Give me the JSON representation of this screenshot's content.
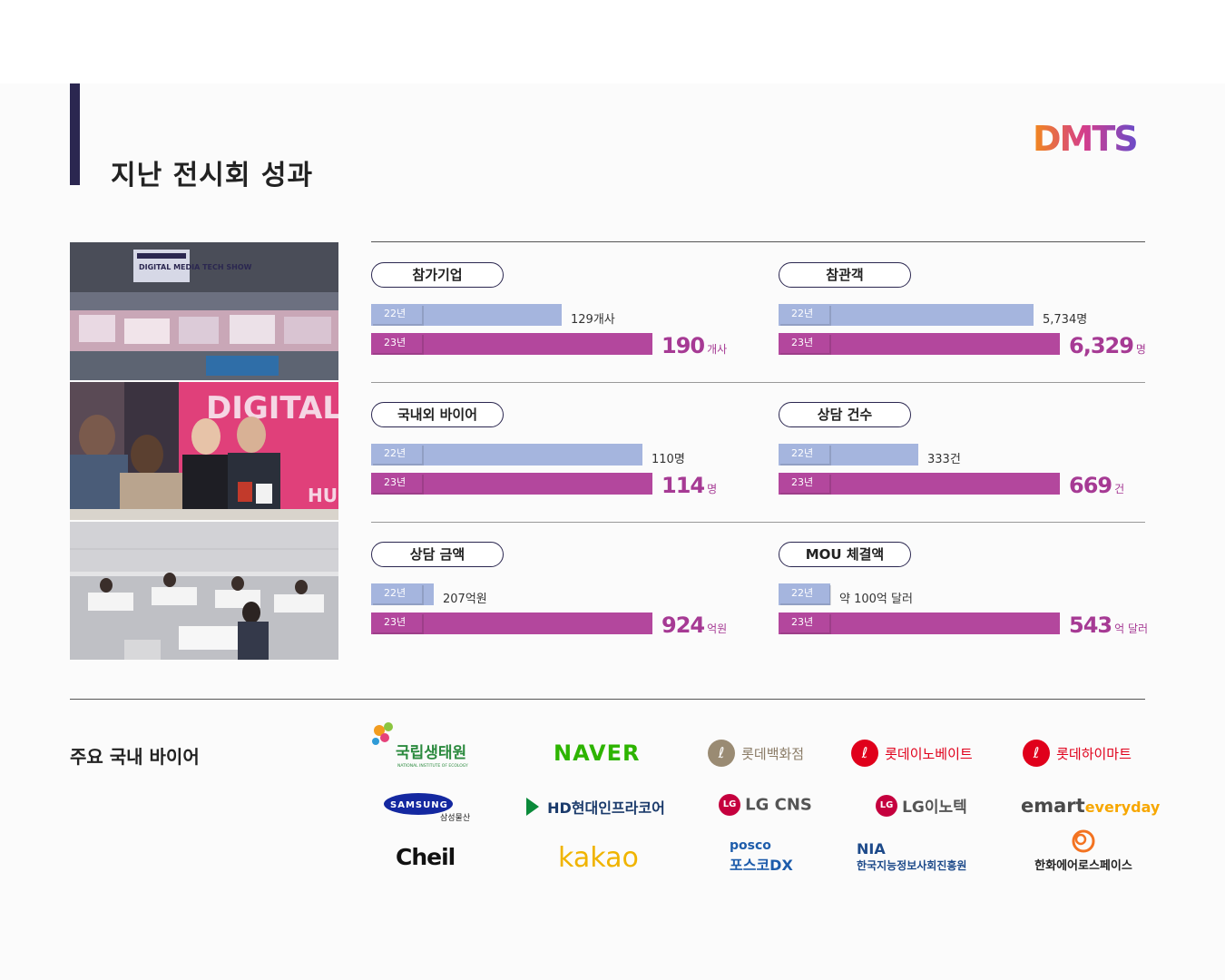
{
  "page": {
    "title": "지난 전시회 성과",
    "logo_text": "DMTS"
  },
  "photos": [
    "전시장 전경",
    "바이어 상담",
    "상담회장"
  ],
  "photo_sign_text": [
    "DIGITAL MEDIA TECH SHOW",
    "DIGITAL TECH",
    "HU"
  ],
  "year_labels": {
    "prev": "22년",
    "cur": "23년"
  },
  "colors": {
    "prev_bar": "#a5b5de",
    "cur_bar": "#b3479d",
    "accent": "#2b2750",
    "value_text": "#a63a94"
  },
  "chart_data": [
    {
      "type": "bar",
      "title": "참가기업",
      "categories": [
        "22년",
        "23년"
      ],
      "values": [
        129,
        190
      ],
      "unit": "개사",
      "prev_label": "129개사",
      "cur_value": "190",
      "cur_unit": "개사"
    },
    {
      "type": "bar",
      "title": "참관객",
      "categories": [
        "22년",
        "23년"
      ],
      "values": [
        5734,
        6329
      ],
      "unit": "명",
      "prev_label": "5,734명",
      "cur_value": "6,329",
      "cur_unit": "명"
    },
    {
      "type": "bar",
      "title": "국내외 바이어",
      "categories": [
        "22년",
        "23년"
      ],
      "values": [
        110,
        114
      ],
      "unit": "명",
      "prev_label": "110명",
      "cur_value": "114",
      "cur_unit": "명"
    },
    {
      "type": "bar",
      "title": "상담 건수",
      "categories": [
        "22년",
        "23년"
      ],
      "values": [
        333,
        669
      ],
      "unit": "건",
      "prev_label": "333건",
      "cur_value": "669",
      "cur_unit": "건"
    },
    {
      "type": "bar",
      "title": "상담 금액",
      "categories": [
        "22년",
        "23년"
      ],
      "values": [
        207,
        924
      ],
      "unit": "억원",
      "prev_label": "207억원",
      "cur_value": "924",
      "cur_unit": "억원"
    },
    {
      "type": "bar",
      "title": "MOU 체결액",
      "categories": [
        "22년",
        "23년"
      ],
      "values": [
        100,
        543
      ],
      "unit": "억 달러",
      "prev_label": "약 100억 달러",
      "cur_value": "543",
      "cur_unit": "억 달러"
    }
  ],
  "buyers": {
    "title": "주요 국내 바이어",
    "items": [
      {
        "name": "국립생태원",
        "sub": "NATIONAL INSTITUTE OF ECOLOGY"
      },
      {
        "name": "NAVER"
      },
      {
        "name": "롯데백화점"
      },
      {
        "name": "롯데이노베이트"
      },
      {
        "name": "롯데하이마트"
      },
      {
        "name": "SAMSUNG",
        "sub": "삼성물산"
      },
      {
        "name": "HD현대인프라코어"
      },
      {
        "name": "LG CNS"
      },
      {
        "name": "LG이노텍"
      },
      {
        "name": "emart",
        "sub": "everyday"
      },
      {
        "name": "Cheil"
      },
      {
        "name": "kakao"
      },
      {
        "name": "posco",
        "sub": "포스코DX"
      },
      {
        "name": "NIA",
        "sub": "한국지능정보사회진흥원"
      },
      {
        "name": "한화에어로스페이스"
      }
    ]
  }
}
